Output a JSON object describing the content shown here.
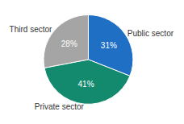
{
  "chart_data": {
    "type": "pie",
    "categories": [
      "Public sector",
      "Private sector",
      "Third sector"
    ],
    "values": [
      31,
      41,
      28
    ],
    "value_labels": [
      "31%",
      "41%",
      "28%"
    ],
    "colors": [
      "#1f6fc5",
      "#138a6e",
      "#a5a5a5"
    ],
    "data_labels": true
  }
}
